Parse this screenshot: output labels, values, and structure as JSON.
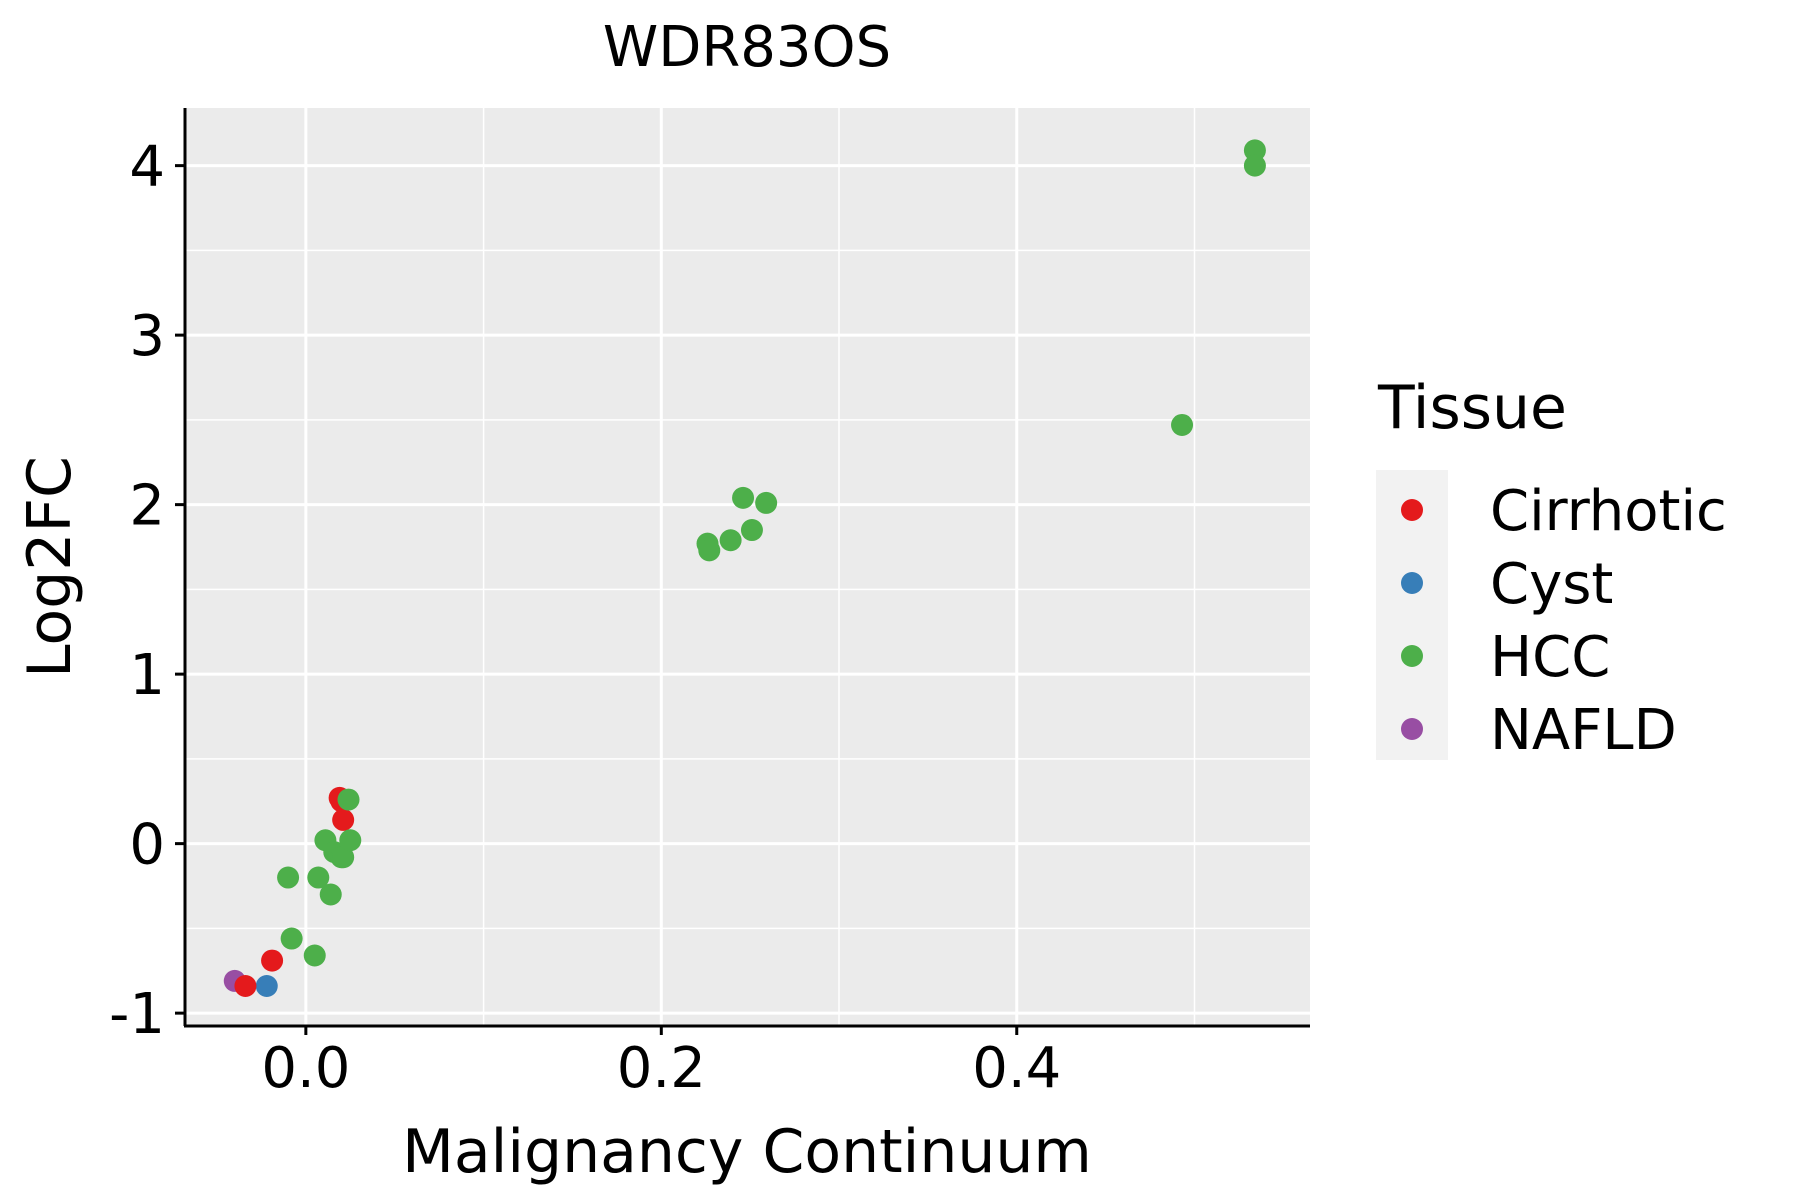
{
  "chart_data": {
    "type": "scatter",
    "title": "WDR83OS",
    "xlabel": "Malignancy Continuum",
    "ylabel": "Log2FC",
    "xlim": [
      -0.068,
      0.565
    ],
    "ylim": [
      -1.07,
      4.34
    ],
    "xticks": [
      0.0,
      0.2,
      0.4
    ],
    "xtick_labels": [
      "0.0",
      "0.2",
      "0.4"
    ],
    "yticks": [
      -1,
      0,
      1,
      2,
      3,
      4
    ],
    "ytick_labels": [
      "-1",
      "0",
      "1",
      "2",
      "3",
      "4"
    ],
    "grid": true,
    "legend_position": "right",
    "legend": {
      "title": "Tissue",
      "entries": [
        {
          "label": "Cirrhotic",
          "color": "#E41A1C"
        },
        {
          "label": "Cyst",
          "color": "#377EB8"
        },
        {
          "label": "HCC",
          "color": "#4DAF4A"
        },
        {
          "label": "NAFLD",
          "color": "#984EA3"
        }
      ]
    },
    "series": [
      {
        "name": "NAFLD",
        "color": "#984EA3",
        "x": [
          -0.04
        ],
        "y": [
          -0.81
        ]
      },
      {
        "name": "Cyst",
        "color": "#377EB8",
        "x": [
          -0.022
        ],
        "y": [
          -0.84
        ]
      },
      {
        "name": "Cirrhotic",
        "color": "#E41A1C",
        "x": [
          -0.034,
          -0.019,
          0.019,
          0.02,
          0.021
        ],
        "y": [
          -0.84,
          -0.69,
          0.27,
          0.25,
          0.14
        ]
      },
      {
        "name": "HCC",
        "color": "#4DAF4A",
        "x": [
          -0.01,
          -0.008,
          0.005,
          0.007,
          0.011,
          0.014,
          0.016,
          0.02,
          0.021,
          0.024,
          0.025,
          0.226,
          0.227,
          0.239,
          0.246,
          0.251,
          0.259,
          0.493,
          0.534,
          0.534
        ],
        "y": [
          -0.2,
          -0.56,
          -0.66,
          -0.2,
          0.02,
          -0.3,
          -0.05,
          -0.08,
          -0.08,
          0.26,
          0.02,
          1.77,
          1.73,
          1.79,
          2.04,
          1.85,
          2.01,
          2.47,
          4.09,
          4.0
        ]
      }
    ]
  }
}
